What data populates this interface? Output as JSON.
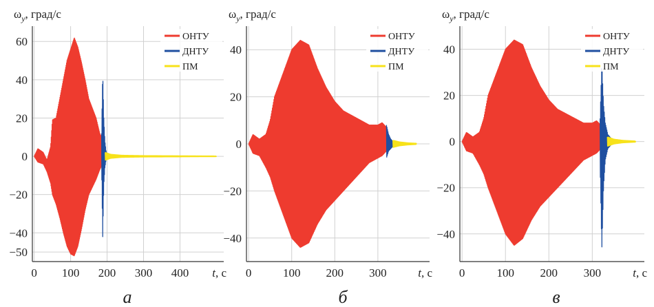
{
  "colors": {
    "ohtu": "#ee3b2f",
    "dhtu": "#1f4fa0",
    "pm": "#f7e21a",
    "grid": "#d0d0d0",
    "axis": "#333333"
  },
  "chart_data": [
    {
      "type": "line",
      "panel_label": "а",
      "ylabel": "ω_y, град/с",
      "ylabel_parts": {
        "sym": "ω",
        "sub": "y",
        "rest": ", град/с"
      },
      "xlabel": "t, с",
      "xlabel_parts": {
        "sym": "t",
        "rest": ", с"
      },
      "xlim": [
        -5,
        520
      ],
      "ylim": [
        -55,
        68
      ],
      "xticks": [
        0,
        100,
        200,
        300,
        400
      ],
      "yticks": [
        -50,
        -40,
        -20,
        0,
        20,
        40,
        60
      ],
      "grid": true,
      "legend_position": "top-right",
      "series": [
        {
          "name": "ОНТУ",
          "color": "#ee3b2f",
          "x_range": [
            0,
            185
          ],
          "envelope": {
            "x": [
              0,
              10,
              25,
              35,
              45,
              50,
              60,
              70,
              80,
              90,
              100,
              110,
              120,
              130,
              140,
              150,
              160,
              170,
              180,
              185
            ],
            "upper": [
              0,
              4,
              2,
              -2,
              5,
              19,
              20,
              30,
              40,
              50,
              56,
              62,
              57,
              49,
              40,
              30,
              25,
              20,
              12,
              10
            ],
            "lower": [
              0,
              -3,
              -4,
              -8,
              -14,
              -20,
              -25,
              -32,
              -40,
              -47,
              -51,
              -52,
              -47,
              -38,
              -28,
              -20,
              -16,
              -12,
              -7,
              -5
            ]
          }
        },
        {
          "name": "ДНТУ",
          "color": "#1f4fa0",
          "x_range": [
            185,
            200
          ],
          "envelope": {
            "x": [
              185,
              188,
              191,
              194,
              197,
              200
            ],
            "upper": [
              12,
              44,
              20,
              8,
              3,
              1
            ],
            "lower": [
              -5,
              -42,
              -15,
              -6,
              -2,
              -1
            ]
          }
        },
        {
          "name": "ПМ",
          "color": "#f7e21a",
          "x_range": [
            195,
            500
          ],
          "envelope": {
            "x": [
              195,
              210,
              240,
              300,
              400,
              500
            ],
            "upper": [
              2,
              1,
              0.5,
              0.3,
              0.2,
              0.1
            ],
            "lower": [
              -2,
              -1,
              -0.5,
              -0.3,
              -0.2,
              -0.1
            ]
          }
        }
      ]
    },
    {
      "type": "line",
      "panel_label": "б",
      "ylabel": "ω_y, град/с",
      "ylabel_parts": {
        "sym": "ω",
        "sub": "y",
        "rest": ", град/с"
      },
      "xlabel": "t, с",
      "xlabel_parts": {
        "sym": "t",
        "rest": ", с"
      },
      "xlim": [
        -5,
        420
      ],
      "ylim": [
        -50,
        50
      ],
      "xticks": [
        0,
        100,
        200,
        300
      ],
      "yticks": [
        -40,
        -20,
        0,
        20,
        40
      ],
      "grid": true,
      "legend_position": "top-right",
      "series": [
        {
          "name": "ОНТУ",
          "color": "#ee3b2f",
          "x_range": [
            0,
            320
          ],
          "envelope": {
            "x": [
              0,
              10,
              25,
              40,
              50,
              60,
              80,
              100,
              120,
              140,
              160,
              180,
              200,
              220,
              240,
              260,
              280,
              300,
              310,
              320
            ],
            "upper": [
              0,
              4,
              2,
              4,
              10,
              20,
              30,
              40,
              44,
              42,
              32,
              24,
              18,
              14,
              12,
              10,
              8,
              8,
              9,
              7
            ],
            "lower": [
              0,
              -4,
              -5,
              -10,
              -14,
              -20,
              -30,
              -40,
              -44,
              -42,
              -34,
              -28,
              -24,
              -20,
              -16,
              -12,
              -8,
              -6,
              -5,
              -3
            ]
          }
        },
        {
          "name": "ДНТУ",
          "color": "#1f4fa0",
          "x_range": [
            320,
            340
          ],
          "envelope": {
            "x": [
              320,
              325,
              330,
              335,
              340
            ],
            "upper": [
              8,
              4,
              2,
              1,
              0.5
            ],
            "lower": [
              -6,
              -3,
              -2,
              -1,
              -0.5
            ]
          }
        },
        {
          "name": "ПМ",
          "color": "#f7e21a",
          "x_range": [
            335,
            390
          ],
          "envelope": {
            "x": [
              335,
              350,
              370,
              390
            ],
            "upper": [
              1.5,
              0.8,
              0.4,
              0.2
            ],
            "lower": [
              -1.5,
              -0.8,
              -0.4,
              -0.2
            ]
          }
        }
      ]
    },
    {
      "type": "line",
      "panel_label": "в",
      "ylabel": "ω_y, град/с",
      "ylabel_parts": {
        "sym": "ω",
        "sub": "y",
        "rest": ", град/с"
      },
      "xlabel": "t, с",
      "xlabel_parts": {
        "sym": "t",
        "rest": ", с"
      },
      "xlim": [
        -5,
        420
      ],
      "ylim": [
        -52,
        50
      ],
      "xticks": [
        0,
        100,
        200,
        300
      ],
      "yticks": [
        -40,
        -20,
        0,
        20,
        40
      ],
      "grid": true,
      "legend_position": "top-right",
      "series": [
        {
          "name": "ОНТУ",
          "color": "#ee3b2f",
          "x_range": [
            0,
            320
          ],
          "envelope": {
            "x": [
              0,
              10,
              25,
              40,
              50,
              60,
              80,
              100,
              120,
              140,
              160,
              180,
              200,
              220,
              240,
              260,
              280,
              300,
              310,
              320
            ],
            "upper": [
              0,
              4,
              2,
              4,
              10,
              20,
              30,
              40,
              44,
              42,
              32,
              24,
              18,
              14,
              12,
              10,
              8,
              8,
              9,
              7
            ],
            "lower": [
              0,
              -4,
              -5,
              -10,
              -14,
              -20,
              -30,
              -40,
              -45,
              -42,
              -34,
              -28,
              -24,
              -20,
              -16,
              -12,
              -8,
              -6,
              -5,
              -3
            ]
          }
        },
        {
          "name": "ДНТУ",
          "color": "#1f4fa0",
          "x_range": [
            318,
            345
          ],
          "envelope": {
            "x": [
              318,
              322,
              326,
              330,
              336,
              345
            ],
            "upper": [
              10,
              34,
              16,
              8,
              3,
              1
            ],
            "lower": [
              -10,
              -47,
              -20,
              -8,
              -3,
              -1
            ]
          }
        },
        {
          "name": "ПМ",
          "color": "#f7e21a",
          "x_range": [
            335,
            400
          ],
          "envelope": {
            "x": [
              335,
              350,
              370,
              400
            ],
            "upper": [
              2,
              1,
              0.5,
              0.2
            ],
            "lower": [
              -2,
              -1,
              -0.5,
              -0.2
            ]
          }
        }
      ]
    }
  ]
}
